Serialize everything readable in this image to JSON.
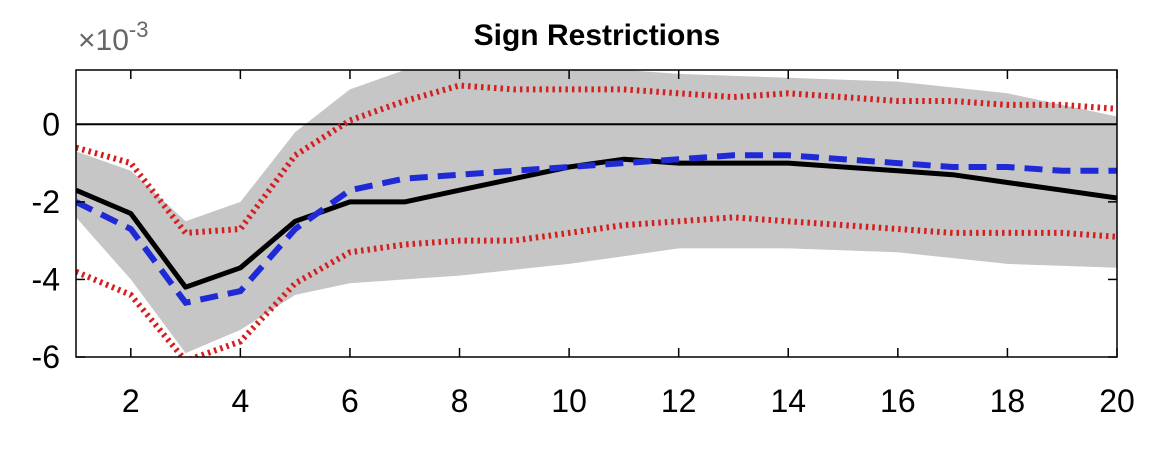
{
  "chart_data": {
    "type": "line",
    "title": "Sign Restrictions",
    "y_multiplier_prefix": "×10",
    "y_multiplier_exponent": "-3",
    "xlim": [
      1,
      20
    ],
    "ylim": [
      -6,
      1.4
    ],
    "x_ticks": [
      2,
      4,
      6,
      8,
      10,
      12,
      14,
      16,
      18,
      20
    ],
    "y_ticks": [
      0,
      -2,
      -4,
      -6
    ],
    "zero_line": true,
    "grid": false,
    "colors": {
      "band": "#c6c6c6",
      "median": "#000000",
      "dashed": "#1f2ad6",
      "dotted": "#d51f1f"
    },
    "series": [
      {
        "style": "gray-band",
        "x": [
          1,
          2,
          3,
          4,
          5,
          6,
          7,
          8,
          10,
          11,
          12,
          14,
          16,
          18,
          20
        ],
        "upper": [
          -0.7,
          -1.2,
          -2.5,
          -2.0,
          -0.2,
          0.9,
          1.4,
          1.4,
          1.4,
          1.4,
          1.3,
          1.2,
          1.1,
          0.8,
          0.2
        ],
        "lower": [
          -2.4,
          -4.0,
          -5.9,
          -5.3,
          -4.4,
          -4.1,
          -4.0,
          -3.9,
          -3.6,
          -3.4,
          -3.2,
          -3.2,
          -3.3,
          -3.6,
          -3.7
        ]
      },
      {
        "style": "solid",
        "x": [
          1,
          2,
          3,
          4,
          5,
          6,
          7,
          8,
          9,
          10,
          11,
          12,
          13,
          14,
          15,
          16,
          17,
          18,
          19,
          20
        ],
        "y": [
          -1.7,
          -2.3,
          -4.2,
          -3.7,
          -2.5,
          -2.0,
          -2.0,
          -1.7,
          -1.4,
          -1.1,
          -0.9,
          -1.0,
          -1.0,
          -1.0,
          -1.1,
          -1.2,
          -1.3,
          -1.5,
          -1.7,
          -1.9
        ]
      },
      {
        "style": "dashed",
        "x": [
          1,
          2,
          3,
          4,
          5,
          6,
          7,
          8,
          9,
          10,
          11,
          12,
          13,
          14,
          15,
          16,
          17,
          18,
          19,
          20
        ],
        "y": [
          -2.0,
          -2.7,
          -4.6,
          -4.3,
          -2.7,
          -1.7,
          -1.4,
          -1.3,
          -1.2,
          -1.1,
          -1.0,
          -0.9,
          -0.8,
          -0.8,
          -0.9,
          -1.0,
          -1.1,
          -1.1,
          -1.2,
          -1.2
        ]
      },
      {
        "style": "dotted-upper",
        "x": [
          1,
          2,
          3,
          4,
          5,
          6,
          7,
          8,
          9,
          10,
          11,
          12,
          13,
          14,
          15,
          16,
          17,
          18,
          19,
          20
        ],
        "y": [
          -0.6,
          -1.0,
          -2.8,
          -2.7,
          -0.8,
          0.1,
          0.6,
          1.0,
          0.9,
          0.9,
          0.9,
          0.8,
          0.7,
          0.8,
          0.7,
          0.6,
          0.6,
          0.5,
          0.5,
          0.4
        ]
      },
      {
        "style": "dotted-lower",
        "x": [
          1,
          2,
          3,
          4,
          5,
          6,
          7,
          8,
          9,
          10,
          11,
          12,
          13,
          14,
          15,
          16,
          17,
          18,
          19,
          20
        ],
        "y": [
          -3.8,
          -4.4,
          -6.1,
          -5.6,
          -4.1,
          -3.3,
          -3.1,
          -3.0,
          -3.0,
          -2.8,
          -2.6,
          -2.5,
          -2.4,
          -2.5,
          -2.6,
          -2.7,
          -2.8,
          -2.8,
          -2.8,
          -2.9
        ]
      }
    ]
  }
}
